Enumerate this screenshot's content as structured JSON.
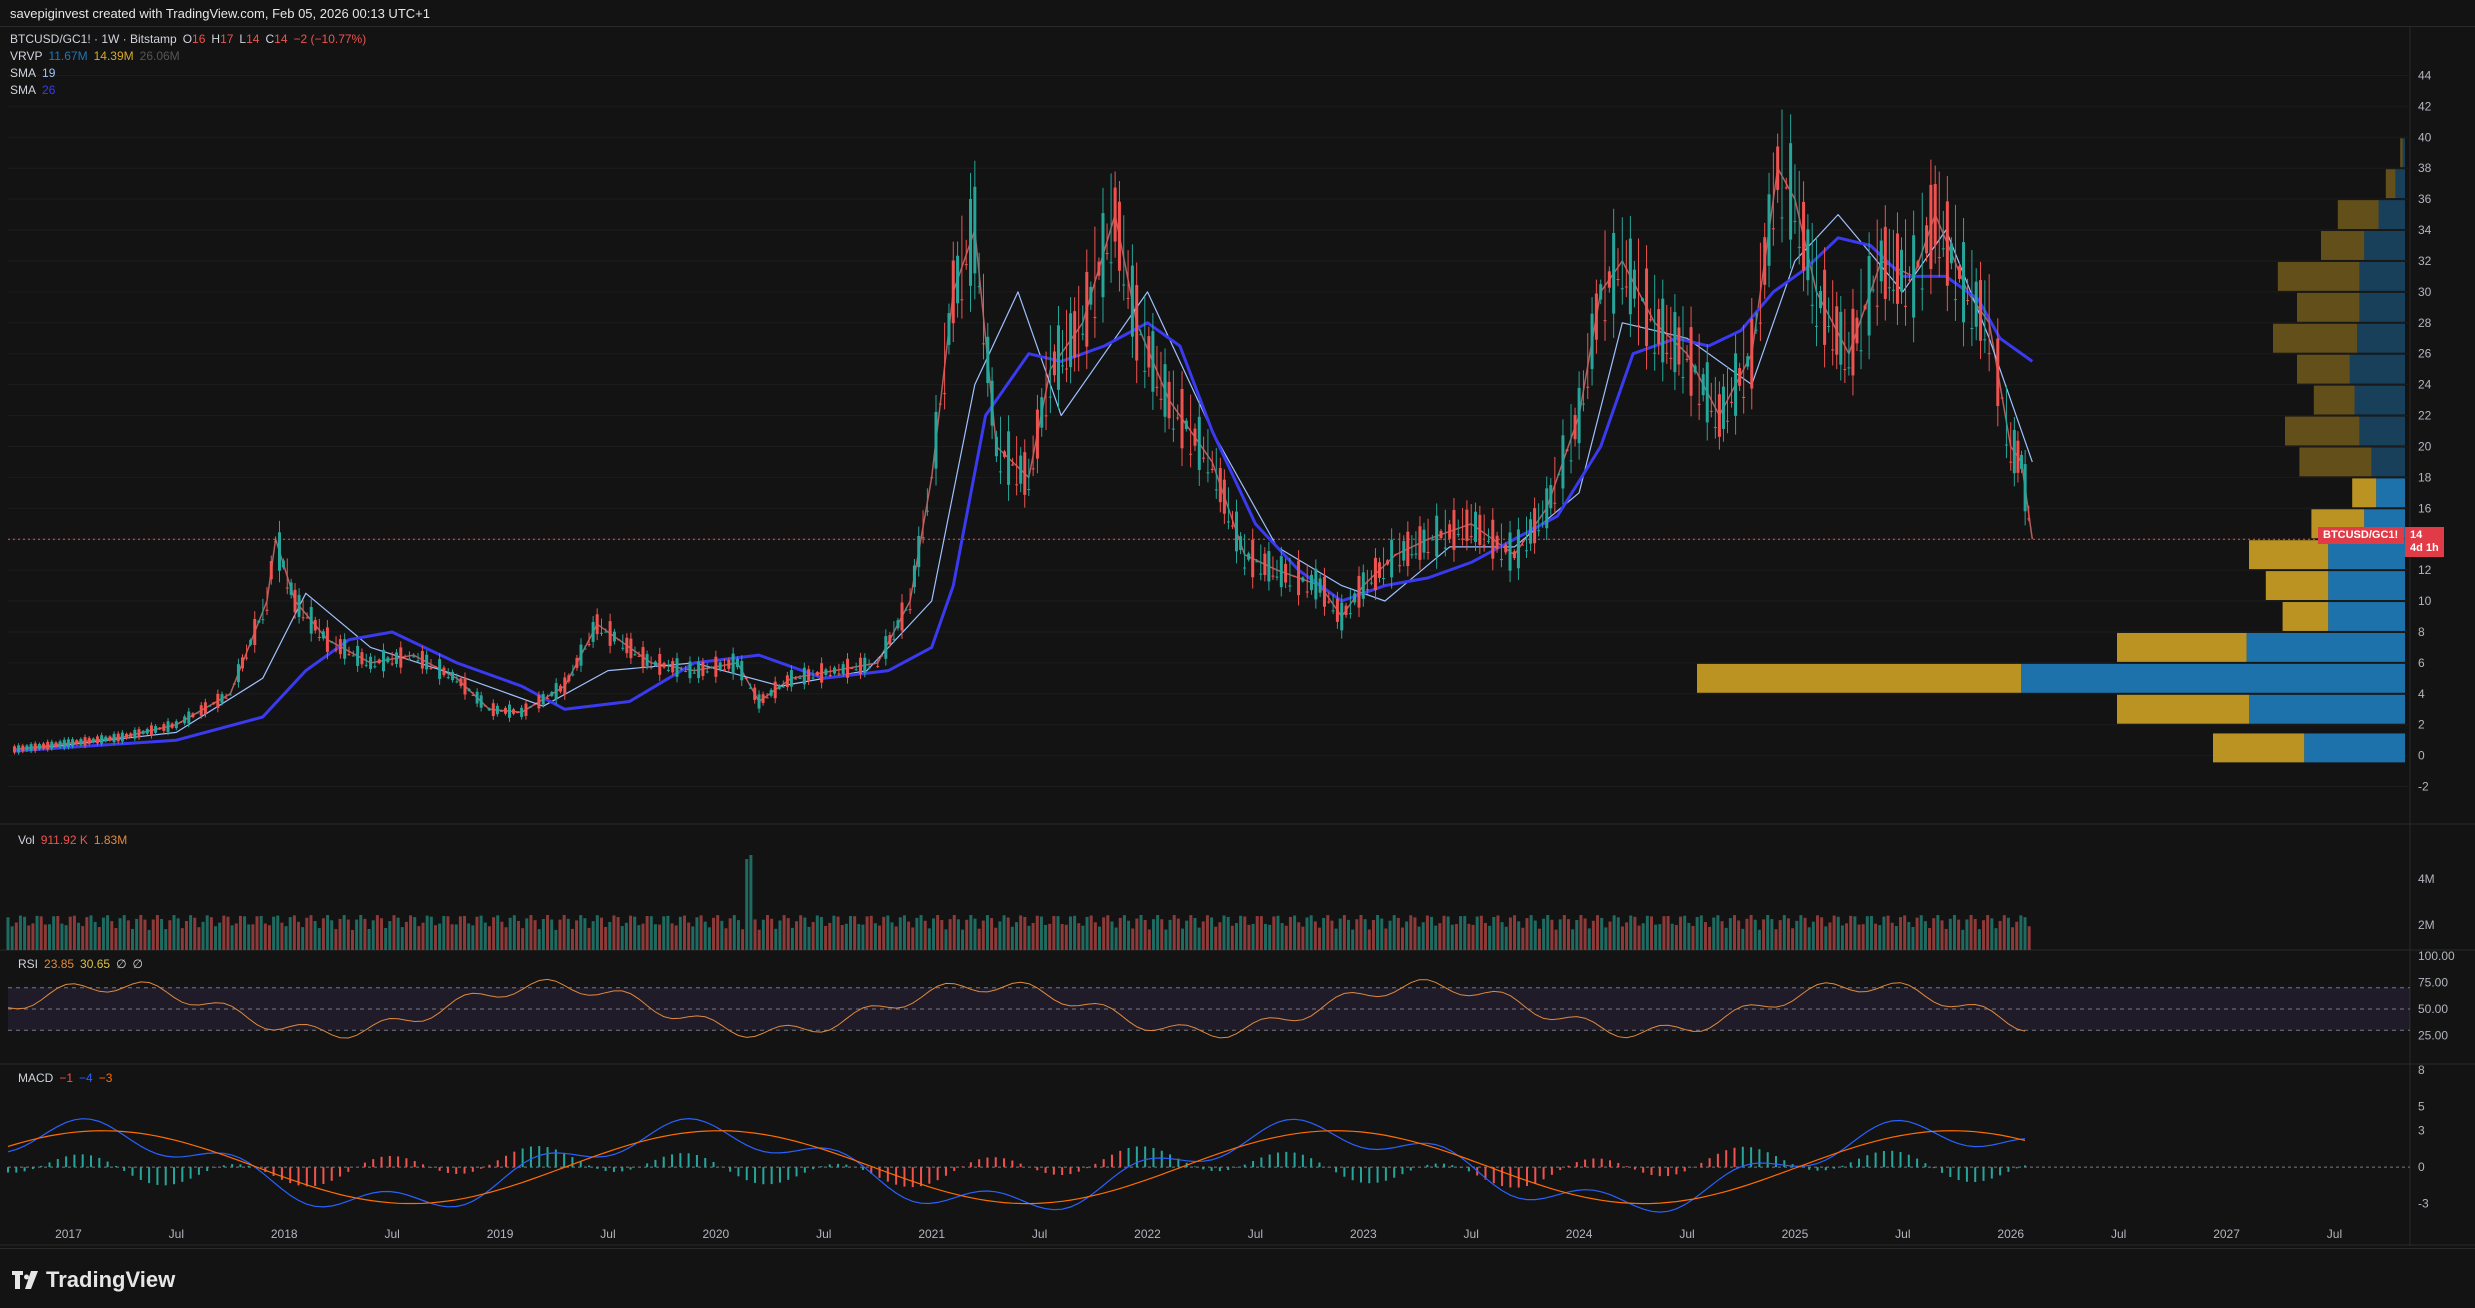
{
  "header": {
    "caption": "savepiginvest created with TradingView.com, Feb 05, 2026 00:13 UTC+1"
  },
  "legend": {
    "symbol": "BTCUSD/GC1! · 1W · Bitstamp",
    "o_label": "O",
    "o": "16",
    "h_label": "H",
    "h": "17",
    "l_label": "L",
    "l": "14",
    "c_label": "C",
    "c": "14",
    "change": "−2 (−10.77%)",
    "vrvp_label": "VRVP",
    "vrvp_up": "11.67M",
    "vrvp_down": "14.39M",
    "vrvp_total": "26.06M",
    "sma1_label": "SMA",
    "sma1_len": "19",
    "sma2_label": "SMA",
    "sma2_len": "26"
  },
  "price_tag": {
    "symbol": "BTCUSD/GC1!",
    "value": "14",
    "countdown": "4d 1h"
  },
  "volume_pane": {
    "label": "Vol",
    "v1": "911.92 K",
    "v2": "1.83M",
    "ticks": [
      "4M",
      "2M"
    ]
  },
  "rsi_pane": {
    "label": "RSI",
    "v1": "23.85",
    "v2": "30.65",
    "v3": "∅",
    "v4": "∅",
    "ticks": [
      "100.00",
      "75.00",
      "50.00",
      "25.00"
    ]
  },
  "macd_pane": {
    "label": "MACD",
    "v1": "−1",
    "v2": "−4",
    "v3": "−3",
    "ticks": [
      "8",
      "5",
      "3",
      "0",
      "-3"
    ]
  },
  "x_axis": {
    "labels": [
      "2017",
      "Jul",
      "2018",
      "Jul",
      "2019",
      "Jul",
      "2020",
      "Jul",
      "2021",
      "Jul",
      "2022",
      "Jul",
      "2023",
      "Jul",
      "2024",
      "Jul",
      "2025",
      "Jul",
      "2026",
      "Jul",
      "2027",
      "Jul"
    ]
  },
  "brand": {
    "name": "TradingView"
  },
  "colors": {
    "up": "#26a69a",
    "down": "#ef5350",
    "sma19": "#9ec1ff",
    "sma26": "#3a3af0",
    "vp_up": "#1f77b4",
    "vp_down": "#c39a24",
    "rsi_line": "#e08a3c",
    "rsi_ma": "#d9c24a",
    "macd": "#2962ff",
    "signal": "#ff6d00"
  },
  "chart_data": {
    "type": "line",
    "title": "BTCUSD/GC1! · 1W · Bitstamp",
    "y_ticks": [
      -2,
      0,
      2,
      4,
      6,
      8,
      10,
      12,
      14,
      16,
      18,
      20,
      22,
      24,
      26,
      28,
      30,
      32,
      34,
      36,
      38,
      40,
      42,
      44
    ],
    "ylim": [
      -3,
      45
    ],
    "x_ticks": [
      "2017",
      "Jul",
      "2018",
      "Jul",
      "2019",
      "Jul",
      "2020",
      "Jul",
      "2021",
      "Jul",
      "2022",
      "Jul",
      "2023",
      "Jul",
      "2024",
      "Jul",
      "2025",
      "Jul",
      "2026",
      "Jul",
      "2027",
      "Jul"
    ],
    "x_tick_years": [
      2017.0,
      2017.5,
      2018.0,
      2018.5,
      2019.0,
      2019.5,
      2020.0,
      2020.5,
      2021.0,
      2021.5,
      2022.0,
      2022.5,
      2023.0,
      2023.5,
      2024.0,
      2024.5,
      2025.0,
      2025.5,
      2026.0,
      2026.5,
      2027.0,
      2027.5
    ],
    "last_price": 14,
    "series": [
      {
        "name": "BTCUSD/GC1!",
        "x": [
          2016.75,
          2017.0,
          2017.25,
          2017.5,
          2017.75,
          2017.92,
          2017.96,
          2018.05,
          2018.2,
          2018.4,
          2018.6,
          2018.8,
          2018.95,
          2019.1,
          2019.3,
          2019.45,
          2019.55,
          2019.7,
          2019.9,
          2020.1,
          2020.2,
          2020.35,
          2020.55,
          2020.75,
          2020.9,
          2021.0,
          2021.1,
          2021.2,
          2021.3,
          2021.45,
          2021.55,
          2021.7,
          2021.85,
          2021.95,
          2022.1,
          2022.3,
          2022.45,
          2022.6,
          2022.8,
          2022.9,
          2023.0,
          2023.15,
          2023.3,
          2023.5,
          2023.7,
          2023.85,
          2024.0,
          2024.1,
          2024.2,
          2024.35,
          2024.5,
          2024.65,
          2024.8,
          2024.92,
          2025.0,
          2025.1,
          2025.25,
          2025.4,
          2025.55,
          2025.65,
          2025.8,
          2025.9,
          2026.0,
          2026.05,
          2026.1
        ],
        "values": [
          0.4,
          0.8,
          1.2,
          2.0,
          4.0,
          10.0,
          14.0,
          10.0,
          7.5,
          6.0,
          6.5,
          5.0,
          3.0,
          2.8,
          4.5,
          8.5,
          7.5,
          6.0,
          5.5,
          6.0,
          3.5,
          5.0,
          5.5,
          6.0,
          10.0,
          18.0,
          30.0,
          34.0,
          20.0,
          18.0,
          25.0,
          28.0,
          35.0,
          28.0,
          23.0,
          19.0,
          13.0,
          12.0,
          11.0,
          9.0,
          11.0,
          13.0,
          14.0,
          15.0,
          13.0,
          16.0,
          22.0,
          30.0,
          32.0,
          28.0,
          26.0,
          22.0,
          26.0,
          38.0,
          36.0,
          30.0,
          26.0,
          32.0,
          31.0,
          35.0,
          30.0,
          28.0,
          20.0,
          19.0,
          14.0
        ]
      },
      {
        "name": "SMA 19",
        "x": [
          2016.75,
          2017.5,
          2017.9,
          2018.1,
          2018.4,
          2018.8,
          2019.2,
          2019.5,
          2019.9,
          2020.3,
          2020.7,
          2021.0,
          2021.2,
          2021.4,
          2021.6,
          2021.85,
          2022.0,
          2022.3,
          2022.6,
          2022.9,
          2023.1,
          2023.4,
          2023.7,
          2024.0,
          2024.2,
          2024.5,
          2024.8,
          2025.0,
          2025.2,
          2025.5,
          2025.7,
          2025.9,
          2026.1
        ],
        "values": [
          0.3,
          1.5,
          5.0,
          10.5,
          7.0,
          5.2,
          3.2,
          5.5,
          6.0,
          4.5,
          5.5,
          10.0,
          24.0,
          30.0,
          22.0,
          27.0,
          30.0,
          21.0,
          13.5,
          11.0,
          10.0,
          13.5,
          13.5,
          17.0,
          28.0,
          27.0,
          24.0,
          32.0,
          35.0,
          30.0,
          34.0,
          27.0,
          19.0
        ]
      },
      {
        "name": "SMA 26",
        "x": [
          2016.75,
          2017.5,
          2017.9,
          2018.1,
          2018.3,
          2018.5,
          2018.8,
          2019.1,
          2019.3,
          2019.6,
          2019.9,
          2020.2,
          2020.5,
          2020.8,
          2021.0,
          2021.1,
          2021.25,
          2021.45,
          2021.6,
          2021.8,
          2022.0,
          2022.15,
          2022.3,
          2022.5,
          2022.7,
          2022.9,
          2023.1,
          2023.3,
          2023.5,
          2023.7,
          2023.9,
          2024.1,
          2024.25,
          2024.45,
          2024.6,
          2024.75,
          2024.9,
          2025.05,
          2025.2,
          2025.35,
          2025.5,
          2025.7,
          2025.85,
          2025.95,
          2026.1
        ],
        "values": [
          0.3,
          1.0,
          2.5,
          5.5,
          7.5,
          8.0,
          6.0,
          4.5,
          3.0,
          3.5,
          6.0,
          6.5,
          5.0,
          5.5,
          7.0,
          11.0,
          22.0,
          26.0,
          25.5,
          26.5,
          28.0,
          26.5,
          21.0,
          15.0,
          12.0,
          10.0,
          11.0,
          11.5,
          12.5,
          14.0,
          15.5,
          20.0,
          26.0,
          27.0,
          26.5,
          27.5,
          30.0,
          31.5,
          33.5,
          33.0,
          31.0,
          31.0,
          29.5,
          27.0,
          25.5
        ]
      }
    ],
    "volume_profile": [
      {
        "price": 0.5,
        "up": 4.2,
        "down": 3.8
      },
      {
        "price": 3.0,
        "up": 6.5,
        "down": 5.5
      },
      {
        "price": 5.0,
        "up": 16.0,
        "down": 13.5
      },
      {
        "price": 7.0,
        "up": 6.6,
        "down": 5.4
      },
      {
        "price": 9.0,
        "up": 3.2,
        "down": 1.9
      },
      {
        "price": 11.0,
        "up": 3.2,
        "down": 2.6
      },
      {
        "price": 13.0,
        "up": 3.2,
        "down": 3.3
      },
      {
        "price": 15.0,
        "up": 1.7,
        "down": 2.2
      },
      {
        "price": 17.0,
        "up": 1.2,
        "down": 1.0
      },
      {
        "price": 19.0,
        "up": 1.4,
        "down": 3.0
      },
      {
        "price": 21.0,
        "up": 1.9,
        "down": 3.1
      },
      {
        "price": 23.0,
        "up": 2.1,
        "down": 1.7
      },
      {
        "price": 25.0,
        "up": 2.3,
        "down": 2.2
      },
      {
        "price": 27.0,
        "up": 2.0,
        "down": 3.5
      },
      {
        "price": 29.0,
        "up": 1.9,
        "down": 2.6
      },
      {
        "price": 31.0,
        "up": 1.9,
        "down": 3.4
      },
      {
        "price": 33.0,
        "up": 1.7,
        "down": 1.8
      },
      {
        "price": 35.0,
        "up": 1.1,
        "down": 1.7
      },
      {
        "price": 37.0,
        "up": 0.4,
        "down": 0.4
      },
      {
        "price": 39.0,
        "up": 0.1,
        "down": 0.1
      }
    ]
  }
}
